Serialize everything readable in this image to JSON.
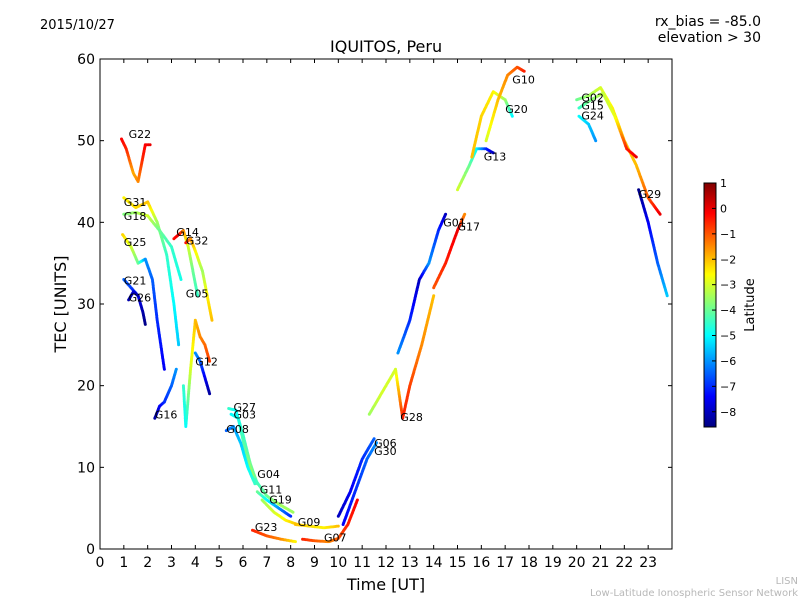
{
  "header": {
    "date": "2015/10/27",
    "rx_bias": "rx_bias = -85.0",
    "elevation": "elevation > 30"
  },
  "footer": {
    "code": "LISN",
    "network": "Low-Latitude Ionospheric Sensor Network"
  },
  "colors": {
    "jet": [
      "#00007f",
      "#0000ff",
      "#007fff",
      "#00ffff",
      "#7fff7f",
      "#ffff00",
      "#ff7f00",
      "#ff0000",
      "#7f0000"
    ]
  },
  "chart_data": {
    "type": "scatter",
    "title": "IQUITOS, Peru",
    "xlabel": "Time [UT]",
    "ylabel": "TEC [UNITS]",
    "xlim": [
      0,
      24
    ],
    "ylim": [
      0,
      60
    ],
    "xticks": [
      "0",
      "1",
      "2",
      "3",
      "4",
      "5",
      "6",
      "7",
      "8",
      "9",
      "10",
      "11",
      "12",
      "13",
      "14",
      "15",
      "16",
      "17",
      "18",
      "19",
      "20",
      "21",
      "22",
      "23"
    ],
    "yticks": [
      "0",
      "10",
      "20",
      "30",
      "40",
      "50",
      "60"
    ],
    "grid": false,
    "colorbar": {
      "label": "Latitude",
      "range": [
        -8.6,
        1
      ],
      "ticks": [
        "1",
        "0",
        "−1",
        "−2",
        "−3",
        "−4",
        "−5",
        "−6",
        "−7",
        "−8"
      ],
      "tick_values": [
        1,
        0,
        -1,
        -2,
        -3,
        -4,
        -5,
        -6,
        -7,
        -8
      ]
    },
    "series": [
      {
        "name": "G22",
        "label_at": [
          1.2,
          50.3
        ],
        "points": [
          [
            0.9,
            50.2,
            -0.2
          ],
          [
            1.1,
            49,
            -0.5
          ],
          [
            1.4,
            46,
            -1.8
          ],
          [
            1.6,
            45,
            -1.5
          ],
          [
            1.8,
            48,
            -0.5
          ],
          [
            1.9,
            49.5,
            -0.2
          ],
          [
            2.1,
            49.5,
            0
          ]
        ]
      },
      {
        "name": "G31",
        "label_at": [
          1.0,
          42.0
        ],
        "points": [
          [
            1.0,
            43,
            -2.5
          ],
          [
            1.5,
            41.8,
            -2.3
          ],
          [
            2.0,
            42.5,
            -2.0
          ],
          [
            2.4,
            40,
            -3.5
          ],
          [
            2.8,
            36,
            -4.5
          ],
          [
            3.1,
            30,
            -5
          ],
          [
            3.3,
            25,
            -5.5
          ]
        ]
      },
      {
        "name": "G18",
        "label_at": [
          1.0,
          40.3
        ],
        "points": [
          [
            1.0,
            41,
            -3.8
          ],
          [
            1.5,
            41.2,
            -3.5
          ],
          [
            2.0,
            40.8,
            -3.0
          ],
          [
            2.5,
            39,
            -4
          ],
          [
            3.0,
            37,
            -4.5
          ],
          [
            3.4,
            33,
            -4.8
          ]
        ]
      },
      {
        "name": "G25",
        "label_at": [
          1.0,
          37.1
        ],
        "points": [
          [
            0.95,
            38.5,
            -2.2
          ],
          [
            1.3,
            37,
            -3
          ],
          [
            1.6,
            35,
            -4
          ],
          [
            1.9,
            35.5,
            -6
          ],
          [
            2.2,
            33,
            -6.5
          ],
          [
            2.4,
            28,
            -7
          ],
          [
            2.7,
            22,
            -7.5
          ]
        ]
      },
      {
        "name": "G21",
        "label_at": [
          1.0,
          32.4
        ],
        "points": [
          [
            1.0,
            33,
            -6.5
          ],
          [
            1.3,
            32,
            -6.8
          ],
          [
            1.6,
            31,
            -7.5
          ],
          [
            1.8,
            29,
            -8.2
          ],
          [
            1.9,
            27.5,
            -8.5
          ]
        ]
      },
      {
        "name": "G26",
        "label_at": [
          1.2,
          30.3
        ],
        "points": [
          [
            1.2,
            30.5,
            -8.2
          ],
          [
            1.4,
            31.5,
            -7.8
          ],
          [
            1.6,
            31,
            -8.3
          ]
        ]
      },
      {
        "name": "G16",
        "label_at": [
          2.3,
          16.0
        ],
        "points": [
          [
            2.3,
            16,
            -8.3
          ],
          [
            2.5,
            17.5,
            -7.5
          ],
          [
            2.7,
            18,
            -7
          ],
          [
            3.0,
            20,
            -6.5
          ],
          [
            3.2,
            22,
            -6
          ]
        ]
      },
      {
        "name": "G14",
        "label_at": [
          3.2,
          38.3
        ],
        "points": [
          [
            3.1,
            38,
            -0.3
          ],
          [
            3.3,
            38.5,
            0
          ],
          [
            3.5,
            39,
            -1.5
          ],
          [
            3.7,
            37,
            -3
          ],
          [
            3.9,
            34,
            -4
          ],
          [
            4.1,
            31,
            -4.5
          ]
        ]
      },
      {
        "name": "G32",
        "label_at": [
          3.6,
          37.3
        ],
        "points": [
          [
            3.6,
            37.5,
            -0.3
          ],
          [
            3.8,
            38,
            -1.5
          ],
          [
            4.0,
            36.5,
            -2.5
          ],
          [
            4.3,
            34,
            -3.5
          ],
          [
            4.5,
            31,
            -2.5
          ],
          [
            4.7,
            28,
            -2
          ]
        ]
      },
      {
        "name": "G05",
        "label_at": [
          3.6,
          30.8
        ],
        "points": [
          [
            3.5,
            20,
            -4.5
          ],
          [
            3.6,
            15,
            -5
          ],
          [
            3.8,
            22,
            -3
          ],
          [
            4.0,
            28,
            -2
          ],
          [
            4.2,
            26,
            -1.5
          ],
          [
            4.4,
            25,
            -1.2
          ],
          [
            4.6,
            23,
            -0.8
          ]
        ]
      },
      {
        "name": "G12",
        "label_at": [
          4.0,
          22.5
        ],
        "points": [
          [
            4.0,
            24,
            -6
          ],
          [
            4.2,
            23,
            -6.5
          ],
          [
            4.4,
            21,
            -7.5
          ],
          [
            4.6,
            19,
            -8.3
          ]
        ]
      },
      {
        "name": "G27",
        "label_at": [
          5.6,
          16.9
        ],
        "points": [
          [
            5.4,
            17.2,
            -4.5
          ],
          [
            5.7,
            17,
            -5
          ],
          [
            6.0,
            14,
            -4.5
          ],
          [
            6.3,
            10.5,
            -4
          ],
          [
            6.6,
            8,
            -4
          ]
        ]
      },
      {
        "name": "G03",
        "label_at": [
          5.6,
          16.0
        ],
        "points": [
          [
            5.5,
            16.5,
            -5
          ],
          [
            5.8,
            16,
            -4.8
          ],
          [
            6.1,
            12,
            -4
          ],
          [
            6.4,
            9,
            -3.5
          ]
        ]
      },
      {
        "name": "G08",
        "label_at": [
          5.3,
          14.2
        ],
        "points": [
          [
            5.3,
            14.5,
            -6.5
          ],
          [
            5.6,
            15,
            -6
          ],
          [
            5.9,
            13,
            -5.5
          ],
          [
            6.2,
            10,
            -5
          ],
          [
            6.5,
            8,
            -4.5
          ]
        ]
      },
      {
        "name": "G04",
        "label_at": [
          6.6,
          8.7
        ],
        "points": [
          [
            6.5,
            8.5,
            -4.5
          ],
          [
            7.0,
            6.5,
            -4
          ],
          [
            7.5,
            5.5,
            -3.5
          ],
          [
            8.1,
            4.5,
            -3.5
          ]
        ]
      },
      {
        "name": "G11",
        "label_at": [
          6.7,
          6.8
        ],
        "points": [
          [
            6.6,
            7,
            -4
          ],
          [
            7.0,
            6,
            -5
          ],
          [
            7.5,
            5,
            -6
          ],
          [
            8.0,
            4,
            -7
          ]
        ]
      },
      {
        "name": "G19",
        "label_at": [
          7.1,
          5.6
        ],
        "points": [
          [
            6.8,
            6,
            -3.5
          ],
          [
            7.3,
            4.5,
            -3
          ],
          [
            7.8,
            3.5,
            -2.5
          ],
          [
            8.3,
            3,
            -2
          ]
        ]
      },
      {
        "name": "G23",
        "label_at": [
          6.5,
          2.2
        ],
        "points": [
          [
            6.4,
            2.3,
            -0.5
          ],
          [
            7.0,
            1.6,
            -1
          ],
          [
            7.6,
            1.2,
            -1.5
          ],
          [
            8.2,
            0.9,
            -2.5
          ]
        ]
      },
      {
        "name": "G09",
        "label_at": [
          8.3,
          2.8
        ],
        "points": [
          [
            8.2,
            3,
            -2
          ],
          [
            8.8,
            2.8,
            -2.3
          ],
          [
            9.4,
            2.6,
            -2.5
          ],
          [
            10.0,
            2.8,
            -2
          ]
        ]
      },
      {
        "name": "G07",
        "label_at": [
          9.4,
          0.9
        ],
        "points": [
          [
            8.5,
            1.2,
            -0.5
          ],
          [
            9.0,
            1.0,
            -1
          ],
          [
            9.6,
            0.9,
            -1.5
          ],
          [
            10.0,
            1.3,
            -1
          ],
          [
            10.4,
            3,
            -0.5
          ],
          [
            10.8,
            6,
            -0.2
          ]
        ]
      },
      {
        "name": "G06",
        "label_at": [
          11.5,
          12.5
        ],
        "points": [
          [
            10.0,
            4,
            -8
          ],
          [
            10.5,
            7,
            -7.5
          ],
          [
            11.0,
            11,
            -7
          ],
          [
            11.5,
            13.5,
            -6.5
          ]
        ]
      },
      {
        "name": "G30",
        "label_at": [
          11.5,
          11.5
        ],
        "points": [
          [
            10.2,
            3,
            -7.5
          ],
          [
            10.7,
            7,
            -7
          ],
          [
            11.2,
            11,
            -6.5
          ],
          [
            11.6,
            13,
            -6
          ]
        ]
      },
      {
        "name": "G28",
        "label_at": [
          12.6,
          15.7
        ],
        "points": [
          [
            11.3,
            16.5,
            -3.5
          ],
          [
            11.8,
            19,
            -3
          ],
          [
            12.4,
            22,
            -3
          ],
          [
            12.7,
            16,
            -0.5
          ],
          [
            13.0,
            20,
            -0.8
          ],
          [
            13.5,
            25,
            -1.5
          ],
          [
            14.0,
            31,
            -2
          ]
        ]
      },
      {
        "name": "G01",
        "label_at": [
          14.4,
          39.5
        ],
        "points": [
          [
            12.5,
            24,
            -6
          ],
          [
            13.0,
            28,
            -7
          ],
          [
            13.4,
            33,
            -8
          ],
          [
            13.8,
            35,
            -6
          ],
          [
            14.2,
            39,
            -7
          ],
          [
            14.5,
            41,
            -8
          ]
        ]
      },
      {
        "name": "G17",
        "label_at": [
          15.0,
          39.0
        ],
        "points": [
          [
            14.0,
            32,
            -1
          ],
          [
            14.5,
            35,
            -0.5
          ],
          [
            15.0,
            39,
            0
          ],
          [
            15.3,
            41,
            -1.5
          ]
        ]
      },
      {
        "name": "G13",
        "label_at": [
          16.1,
          47.6
        ],
        "points": [
          [
            15.0,
            44,
            -3
          ],
          [
            15.5,
            47,
            -4
          ],
          [
            15.8,
            49,
            -5
          ],
          [
            16.2,
            49,
            -7
          ],
          [
            16.5,
            48.5,
            -8
          ]
        ]
      },
      {
        "name": "G20",
        "label_at": [
          17.0,
          53.4
        ],
        "points": [
          [
            15.6,
            48,
            -2
          ],
          [
            16.0,
            53,
            -2.2
          ],
          [
            16.5,
            56,
            -2.5
          ],
          [
            17.0,
            55,
            -3.5
          ],
          [
            17.3,
            53,
            -5
          ]
        ]
      },
      {
        "name": "G10",
        "label_at": [
          17.3,
          57.0
        ],
        "points": [
          [
            16.2,
            50,
            -3
          ],
          [
            16.7,
            55,
            -2
          ],
          [
            17.1,
            58,
            -1.5
          ],
          [
            17.5,
            59,
            -1
          ],
          [
            17.8,
            58.5,
            -0.5
          ]
        ]
      },
      {
        "name": "G02",
        "label_at": [
          20.2,
          54.8
        ],
        "points": [
          [
            20.0,
            55,
            -4
          ],
          [
            20.5,
            55.5,
            -3.5
          ],
          [
            21.0,
            56.5,
            -3
          ],
          [
            21.5,
            54,
            -2.5
          ],
          [
            22.0,
            50,
            -2
          ],
          [
            22.5,
            47,
            -2
          ],
          [
            23.0,
            43,
            -1
          ],
          [
            23.5,
            41,
            0
          ]
        ]
      },
      {
        "name": "G15",
        "label_at": [
          20.2,
          53.8
        ],
        "points": [
          [
            20.1,
            54,
            -4.5
          ],
          [
            20.6,
            55,
            -3.8
          ],
          [
            21.1,
            55.8,
            -3.2
          ],
          [
            21.6,
            53,
            -2.8
          ],
          [
            22.1,
            49,
            -0.5
          ],
          [
            22.5,
            48,
            0
          ]
        ]
      },
      {
        "name": "G24",
        "label_at": [
          20.2,
          52.6
        ],
        "points": [
          [
            20.1,
            53,
            -5
          ],
          [
            20.5,
            52,
            -5.5
          ],
          [
            20.8,
            50,
            -6
          ]
        ]
      },
      {
        "name": "G29",
        "label_at": [
          22.6,
          43.0
        ],
        "points": [
          [
            22.6,
            44,
            -8.5
          ],
          [
            23.0,
            40,
            -7.5
          ],
          [
            23.4,
            35,
            -6.5
          ],
          [
            23.8,
            31,
            -5.5
          ]
        ]
      }
    ]
  }
}
